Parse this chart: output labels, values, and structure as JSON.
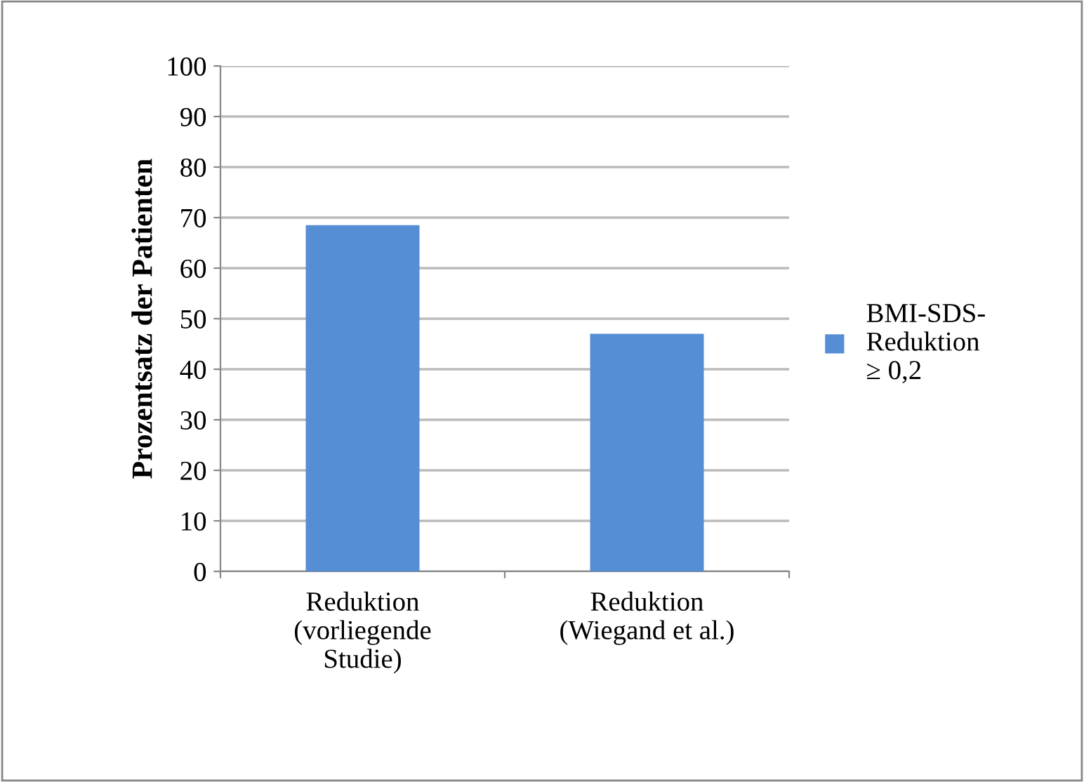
{
  "chart_data": {
    "type": "bar",
    "ylabel": "Prozentsatz der Patienten",
    "categories": [
      "Reduktion\n(vorliegende\nStudie)",
      "Reduktion\n(Wiegand et al.)"
    ],
    "series": [
      {
        "name": "BMI-SDS-\nReduktion\n≥ 0,2",
        "color": "#558ed5",
        "values": [
          68.5,
          47
        ]
      }
    ],
    "ylim": [
      0,
      100
    ],
    "yticks": [
      0,
      10,
      20,
      30,
      40,
      50,
      60,
      70,
      80,
      90,
      100
    ],
    "grid": "y",
    "legend": "right"
  }
}
